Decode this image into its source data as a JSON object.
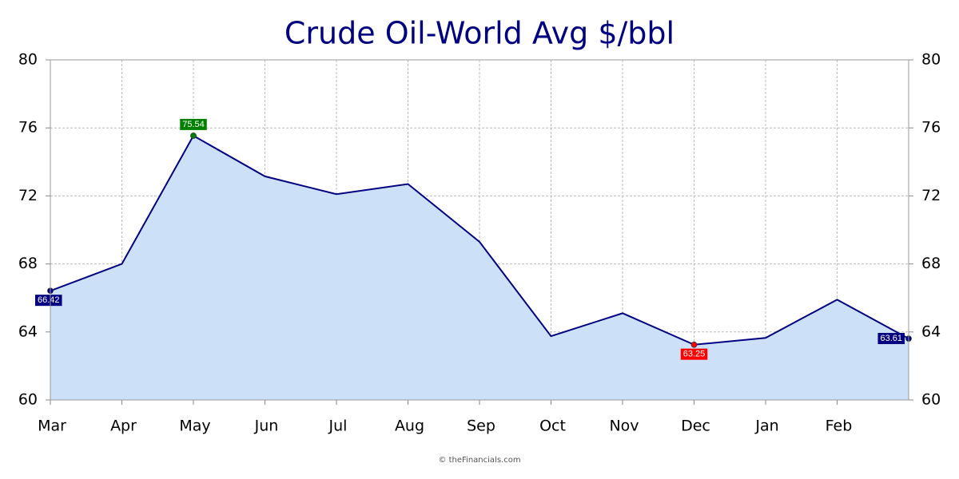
{
  "chart_data": {
    "type": "area",
    "title": "Crude Oil-World Avg $/bbl",
    "categories": [
      "Mar",
      "Apr",
      "May",
      "Jun",
      "Jul",
      "Aug",
      "Sep",
      "Oct",
      "Nov",
      "Dec",
      "Jan",
      "Feb",
      null
    ],
    "series": [
      {
        "color": "#000080",
        "fill": "#cce0f7",
        "values": [
          66.42,
          68.0,
          75.54,
          73.15,
          72.1,
          72.7,
          69.3,
          63.75,
          65.1,
          63.25,
          63.65,
          65.9,
          63.61
        ],
        "value_labels": [
          "66.42",
          null,
          "75.54",
          null,
          null,
          null,
          null,
          null,
          null,
          "63.25",
          null,
          null,
          "63.61"
        ],
        "value_label_colors": [
          "#000080",
          null,
          "#008000",
          null,
          null,
          null,
          null,
          null,
          null,
          "#ff0000",
          null,
          null,
          "#000080"
        ]
      }
    ],
    "ylim": [
      60,
      80
    ],
    "yticks": [
      60,
      64,
      68,
      72,
      76,
      80
    ],
    "y2lim": [
      60,
      80
    ],
    "y2ticks": [
      60,
      64,
      68,
      72,
      76,
      80
    ],
    "grid": true,
    "footer": "© theFinancials.com"
  }
}
